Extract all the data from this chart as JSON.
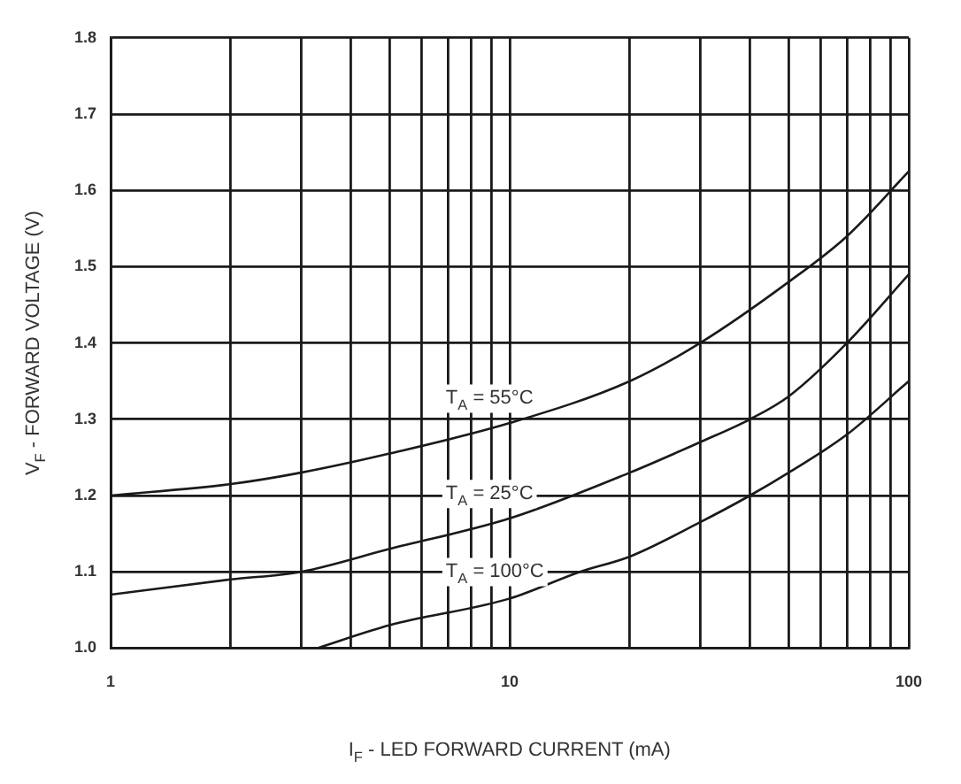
{
  "chart_data": {
    "type": "line",
    "xlabel": "I$_{F}$ - LED FORWARD CURRENT (mA)",
    "ylabel": "V$_{F}$ - FORWARD VOLTAGE (V)",
    "log": "x",
    "grid": true,
    "legend": false,
    "xlim": [
      1,
      100
    ],
    "xticks": [
      1,
      {
        "value": 2,
        "label": null
      },
      {
        "value": 3,
        "label": null
      },
      {
        "value": 4,
        "label": null
      },
      {
        "value": 5,
        "label": null
      },
      {
        "value": 6,
        "label": null
      },
      {
        "value": 7,
        "label": null
      },
      {
        "value": 8,
        "label": null
      },
      {
        "value": 9,
        "label": null
      },
      10,
      {
        "value": 20,
        "label": null
      },
      {
        "value": 30,
        "label": null
      },
      {
        "value": 40,
        "label": null
      },
      {
        "value": 50,
        "label": null
      },
      {
        "value": 60,
        "label": null
      },
      {
        "value": 70,
        "label": null
      },
      {
        "value": 80,
        "label": null
      },
      {
        "value": 90,
        "label": null
      },
      100
    ],
    "ylim": [
      1,
      1.8
    ],
    "yticks": [
      {
        "value": 1,
        "label": "1.0"
      },
      1.1,
      1.2,
      1.3,
      1.4,
      1.5,
      1.6,
      1.7,
      1.8
    ],
    "series": [
      {
        "name": "T$_{A}$ = 55°C",
        "color": "#1a1a1a",
        "x": [
          1,
          2,
          3,
          5,
          10,
          20,
          30,
          50,
          70,
          100
        ],
        "values": [
          1.2,
          1.215,
          1.23,
          1.255,
          1.295,
          1.35,
          1.4,
          1.48,
          1.54,
          1.625
        ]
      },
      {
        "name": "T$_{A}$ = 25°C",
        "color": "#1a1a1a",
        "x": [
          1,
          2,
          3,
          5,
          10,
          20,
          30,
          40,
          50,
          70,
          100
        ],
        "values": [
          1.07,
          1.09,
          1.1,
          1.13,
          1.17,
          1.23,
          1.27,
          1.3,
          1.33,
          1.4,
          1.49
        ]
      },
      {
        "name": "T$_{A}$ = 100°C",
        "color": "#1a1a1a",
        "x": [
          3.3,
          5,
          10,
          15,
          20,
          30,
          40,
          50,
          70,
          100
        ],
        "values": [
          1.0,
          1.03,
          1.065,
          1.1,
          1.12,
          1.165,
          1.2,
          1.23,
          1.28,
          1.35
        ]
      }
    ]
  }
}
